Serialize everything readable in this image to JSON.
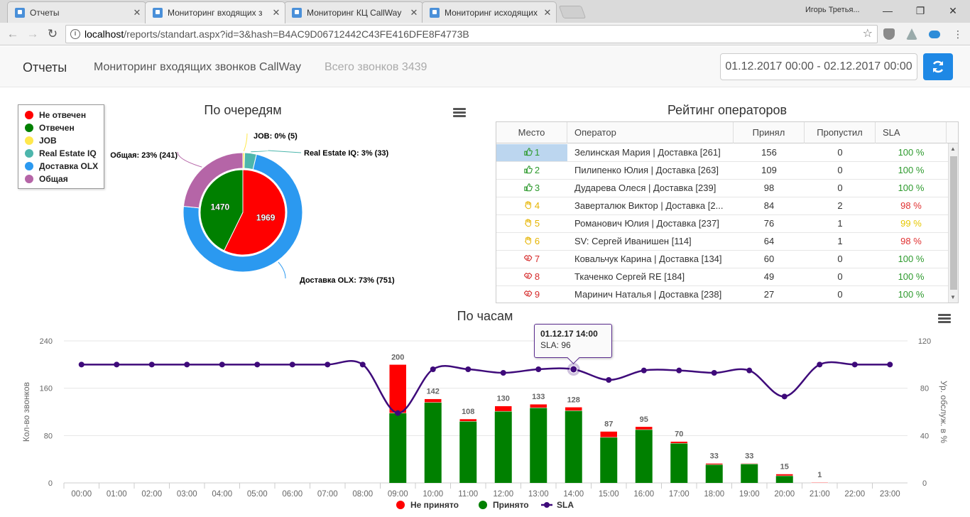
{
  "browser": {
    "tabs": [
      {
        "title": "Отчеты",
        "active": false
      },
      {
        "title": "Мониторинг входящих з",
        "active": true
      },
      {
        "title": "Мониторинг КЦ CallWay",
        "active": false
      },
      {
        "title": "Мониторинг исходящих",
        "active": false
      }
    ],
    "profile": "Игорь Третья...",
    "url_host": "localhost",
    "url_rest": "/reports/standart.aspx?id=3&hash=B4AC9D06712442C43FE416DFE8F4773B"
  },
  "header": {
    "brand": "Отчеты",
    "title": "Мониторинг входящих звонков CallWay",
    "total_calls": "Всего звонков 3439",
    "date_range": "01.12.2017 00:00 - 02.12.2017 00:00"
  },
  "colors": {
    "red": "#ff0000",
    "green": "#008000",
    "yellow": "#ffe84d",
    "teal": "#4db6ac",
    "blue": "#2b99f0",
    "purple": "#b565a7",
    "sla_line": "#3e0a7a",
    "accent": "#1e88e5"
  },
  "pie": {
    "title": "По очередям",
    "legend": [
      {
        "label": "Не отвечен",
        "color": "#ff0000"
      },
      {
        "label": "Отвечен",
        "color": "#008000"
      },
      {
        "label": "JOB",
        "color": "#ffe84d"
      },
      {
        "label": "Real Estate IQ",
        "color": "#4db6ac"
      },
      {
        "label": "Доставка OLX",
        "color": "#2b99f0"
      },
      {
        "label": "Общая",
        "color": "#b565a7"
      }
    ],
    "inner": [
      {
        "label": "Не отвечен",
        "value": 1969,
        "text": "1969"
      },
      {
        "label": "Отвечен",
        "value": 1470,
        "text": "1470"
      }
    ],
    "outer": [
      {
        "name": "JOB",
        "percent": 0,
        "count": 5,
        "text": "JOB: 0% (5)"
      },
      {
        "name": "Real Estate IQ",
        "percent": 3,
        "count": 33,
        "text": "Real Estate IQ: 3% (33)"
      },
      {
        "name": "Доставка OLX",
        "percent": 73,
        "count": 751,
        "text": "Доставка OLX: 73% (751)"
      },
      {
        "name": "Общая",
        "percent": 23,
        "count": 241,
        "text": "Общая: 23% (241)"
      }
    ]
  },
  "rating": {
    "title": "Рейтинг операторов",
    "columns": [
      "Место",
      "Оператор",
      "Принял",
      "Пропустил",
      "SLA"
    ],
    "rows": [
      {
        "place": "1",
        "icon": "thumbs-up-icon",
        "operator": "Зелинская Мария | Доставка [261]",
        "accepted": "156",
        "missed": "0",
        "sla": "100 %"
      },
      {
        "place": "2",
        "icon": "thumbs-up-icon",
        "operator": "Пилипенко Юлия | Доставка [263]",
        "accepted": "109",
        "missed": "0",
        "sla": "100 %"
      },
      {
        "place": "3",
        "icon": "thumbs-up-icon",
        "operator": "Дударева Олеся | Доставка [239]",
        "accepted": "98",
        "missed": "0",
        "sla": "100 %"
      },
      {
        "place": "4",
        "icon": "hand-icon",
        "operator": "Заверталюк Виктор | Доставка [2...",
        "accepted": "84",
        "missed": "2",
        "sla": "98 %"
      },
      {
        "place": "5",
        "icon": "hand-icon",
        "operator": "Романович Юлия | Доставка [237]",
        "accepted": "76",
        "missed": "1",
        "sla": "99 %"
      },
      {
        "place": "6",
        "icon": "hand-icon",
        "operator": "SV: Сергей Иванишен [114]",
        "accepted": "64",
        "missed": "1",
        "sla": "98 %"
      },
      {
        "place": "7",
        "icon": "handshake-icon",
        "operator": "Ковальчук Карина | Доставка [134]",
        "accepted": "60",
        "missed": "0",
        "sla": "100 %"
      },
      {
        "place": "8",
        "icon": "handshake-icon",
        "operator": "Ткаченко Сергей RE [184]",
        "accepted": "49",
        "missed": "0",
        "sla": "100 %"
      },
      {
        "place": "9",
        "icon": "handshake-icon",
        "operator": "Маринич Наталья | Доставка [238]",
        "accepted": "27",
        "missed": "0",
        "sla": "100 %"
      }
    ]
  },
  "chart_data": {
    "type": "bar",
    "title": "По часам",
    "categories": [
      "00:00",
      "01:00",
      "02:00",
      "03:00",
      "04:00",
      "05:00",
      "06:00",
      "07:00",
      "08:00",
      "09:00",
      "10:00",
      "11:00",
      "12:00",
      "13:00",
      "14:00",
      "15:00",
      "16:00",
      "17:00",
      "18:00",
      "19:00",
      "20:00",
      "21:00",
      "22:00",
      "23:00"
    ],
    "series": [
      {
        "name": "Не принято",
        "type": "bar",
        "stack": "calls",
        "color": "#ff0000",
        "values": [
          0,
          0,
          0,
          0,
          0,
          0,
          0,
          0,
          0,
          82,
          6,
          4,
          9,
          6,
          6,
          10,
          5,
          3,
          2,
          1,
          3,
          1,
          0,
          0
        ]
      },
      {
        "name": "Принято",
        "type": "bar",
        "stack": "calls",
        "color": "#008000",
        "values": [
          0,
          0,
          0,
          0,
          0,
          0,
          0,
          0,
          0,
          118,
          136,
          104,
          121,
          127,
          122,
          77,
          90,
          67,
          31,
          32,
          12,
          0,
          0,
          0
        ]
      },
      {
        "name": "SLA",
        "type": "line",
        "axis": "right",
        "color": "#3e0a7a",
        "values": [
          100,
          100,
          100,
          100,
          100,
          100,
          100,
          100,
          100,
          59,
          96,
          96,
          93,
          96,
          96,
          87,
          95,
          95,
          93,
          95,
          73,
          100,
          100,
          100
        ]
      }
    ],
    "totals_labels": [
      "",
      "",
      "",
      "",
      "",
      "",
      "",
      "",
      "",
      "200",
      "142",
      "108",
      "130",
      "133",
      "128",
      "87",
      "95",
      "70",
      "33",
      "33",
      "15",
      "1",
      "",
      ""
    ],
    "ylabel": "Кол-во звонков",
    "ylabel_right": "Ур. обслуж. в %",
    "ylim": [
      0,
      240
    ],
    "yticks": [
      "0",
      "80",
      "160",
      "240"
    ],
    "ylim_right": [
      0,
      120
    ],
    "yticks_right": [
      "0",
      "40",
      "80",
      "120"
    ],
    "grid": true,
    "legend_position": "bottom-center",
    "legend": [
      {
        "label": "Не принято",
        "color": "#ff0000",
        "kind": "dot"
      },
      {
        "label": "Принято",
        "color": "#008000",
        "kind": "dot"
      },
      {
        "label": "SLA",
        "color": "#3e0a7a",
        "kind": "line"
      }
    ],
    "tooltip": {
      "title": "01.12.17 14:00",
      "text": "SLA: 96"
    }
  }
}
